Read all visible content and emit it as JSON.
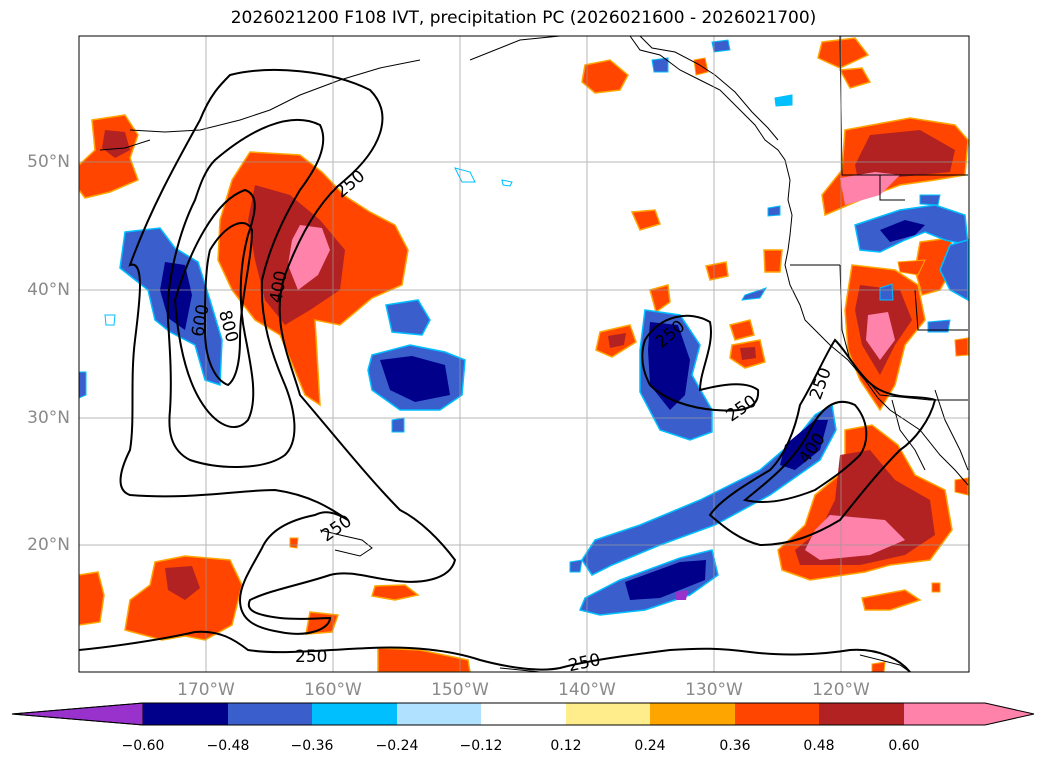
{
  "title": "2026021200 F108 IVT, precipitation PC (2026021600 - 2026021700)",
  "lat_labels": [
    "50°N",
    "40°N",
    "30°N",
    "20°N"
  ],
  "lon_labels": [
    "170°W",
    "160°W",
    "150°W",
    "140°W",
    "130°W",
    "120°W"
  ],
  "contour_labels": [
    "250",
    "400",
    "600",
    "800",
    "250",
    "250",
    "400",
    "250",
    "250",
    "250",
    "250"
  ],
  "colorbar": {
    "ticks": [
      "−0.60",
      "−0.48",
      "−0.36",
      "−0.24",
      "−0.12",
      "0.12",
      "0.24",
      "0.36",
      "0.48",
      "0.60"
    ],
    "colors": [
      "#9932cc",
      "#00008b",
      "#3a5fcd",
      "#00bfff",
      "#b0e2ff",
      "#ffffff",
      "#ffec8b",
      "#ffa500",
      "#ff4500",
      "#b22222",
      "#ff82ab"
    ]
  },
  "chart_data": {
    "type": "map",
    "title": "2026021200 F108 IVT, precipitation PC (2026021600 - 2026021700)",
    "ivt_contour_levels": [
      250,
      400,
      600,
      800
    ],
    "colorbar_levels": [
      -0.6,
      -0.48,
      -0.36,
      -0.24,
      -0.12,
      0.12,
      0.24,
      0.36,
      0.48,
      0.6
    ],
    "lat_ticks": [
      "50°N",
      "40°N",
      "30°N",
      "20°N"
    ],
    "lon_ticks": [
      "170°W",
      "160°W",
      "150°W",
      "140°W",
      "130°W",
      "120°W"
    ]
  }
}
